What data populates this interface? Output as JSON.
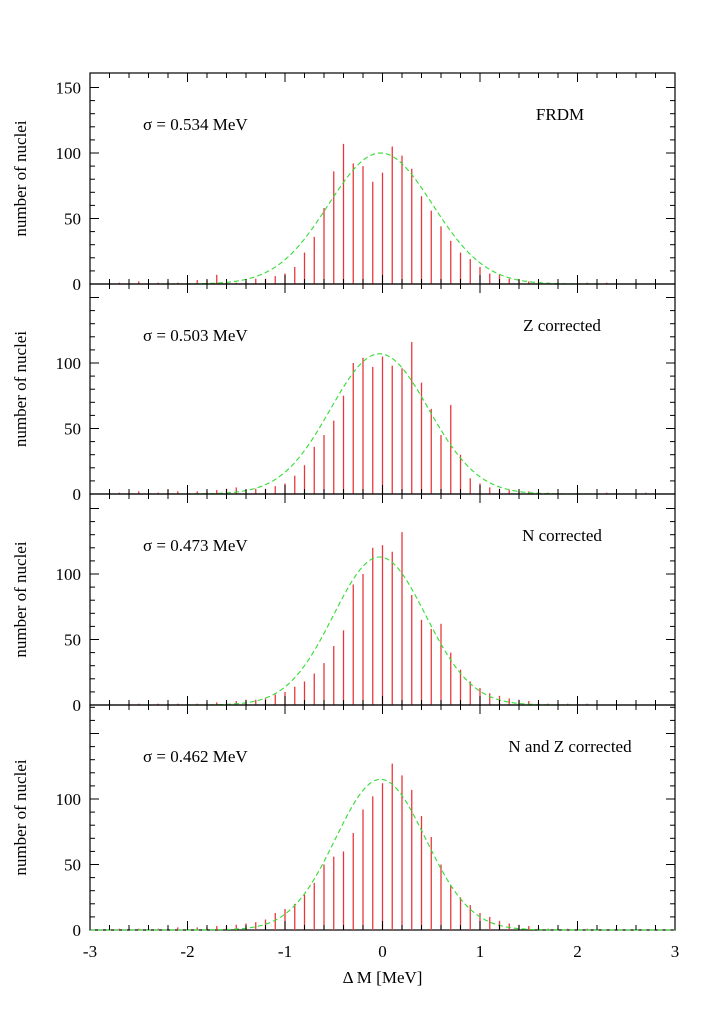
{
  "colors": {
    "bars": "#e8383d",
    "gaussian": "#33dd33",
    "axis": "#000000",
    "background": "#ffffff"
  },
  "xlabel": "Δ M [MeV]",
  "x_tick_labels": [
    "-3",
    "-2",
    "-1",
    "0",
    "1",
    "2",
    "3"
  ],
  "chart_data": [
    {
      "type": "bar",
      "panel_label": "FRDM",
      "sigma_label": "σ = 0.534 MeV",
      "ylabel": "number of nuclei",
      "y_tick_labels": [
        "150",
        "100",
        "50",
        "0"
      ],
      "ylim": [
        0,
        160
      ],
      "xlim": [
        -3,
        3
      ],
      "grid": false,
      "bin_centers": [
        -2.8,
        -2.7,
        -2.6,
        -2.5,
        -2.4,
        -2.3,
        -2.2,
        -2.1,
        -2.0,
        -1.9,
        -1.8,
        -1.7,
        -1.6,
        -1.5,
        -1.4,
        -1.3,
        -1.2,
        -1.1,
        -1.0,
        -0.9,
        -0.8,
        -0.7,
        -0.6,
        -0.5,
        -0.4,
        -0.3,
        -0.2,
        -0.1,
        0.0,
        0.1,
        0.2,
        0.3,
        0.4,
        0.5,
        0.6,
        0.7,
        0.8,
        0.9,
        1.0,
        1.1,
        1.2,
        1.3,
        1.4,
        1.5,
        1.6,
        1.7,
        1.8,
        1.9,
        2.0,
        2.1,
        2.2,
        2.3,
        2.4,
        2.5,
        2.6,
        2.7,
        2.8
      ],
      "counts": [
        1,
        1,
        0,
        2,
        1,
        1,
        2,
        1,
        1,
        3,
        3,
        7,
        1,
        1,
        2,
        4,
        4,
        6,
        8,
        13,
        24,
        36,
        58,
        86,
        107,
        92,
        90,
        78,
        85,
        105,
        98,
        88,
        67,
        56,
        44,
        33,
        24,
        19,
        13,
        8,
        7,
        4,
        3,
        2,
        1,
        1,
        1,
        0,
        0,
        1,
        0,
        1,
        0,
        0,
        1,
        0,
        0
      ],
      "gaussian": {
        "label": "",
        "amplitude": 100,
        "mean": -0.02,
        "sigma": 0.534
      }
    },
    {
      "type": "bar",
      "panel_label": "Z corrected",
      "sigma_label": "σ = 0.503 MeV",
      "ylabel": "number of nuclei",
      "y_tick_labels": [
        "100",
        "50",
        "0"
      ],
      "ylim": [
        0,
        150
      ],
      "xlim": [
        -3,
        3
      ],
      "grid": false,
      "bin_centers": [
        -2.8,
        -2.7,
        -2.6,
        -2.5,
        -2.4,
        -2.3,
        -2.2,
        -2.1,
        -2.0,
        -1.9,
        -1.8,
        -1.7,
        -1.6,
        -1.5,
        -1.4,
        -1.3,
        -1.2,
        -1.1,
        -1.0,
        -0.9,
        -0.8,
        -0.7,
        -0.6,
        -0.5,
        -0.4,
        -0.3,
        -0.2,
        -0.1,
        0.0,
        0.1,
        0.2,
        0.3,
        0.4,
        0.5,
        0.6,
        0.7,
        0.8,
        0.9,
        1.0,
        1.1,
        1.2,
        1.3,
        1.4,
        1.5,
        1.6,
        1.7,
        1.8,
        1.9,
        2.0,
        2.1,
        2.2,
        2.3,
        2.4,
        2.5,
        2.6,
        2.7,
        2.8
      ],
      "counts": [
        1,
        1,
        1,
        2,
        1,
        1,
        3,
        2,
        1,
        2,
        2,
        3,
        4,
        5,
        3,
        4,
        4,
        6,
        8,
        14,
        22,
        36,
        45,
        56,
        75,
        100,
        104,
        97,
        105,
        98,
        96,
        116,
        85,
        65,
        45,
        68,
        30,
        12,
        8,
        5,
        4,
        3,
        2,
        2,
        1,
        1,
        1,
        0,
        1,
        0,
        0,
        1,
        0,
        0,
        0,
        1,
        0
      ],
      "gaussian": {
        "label": "",
        "amplitude": 107,
        "mean": -0.03,
        "sigma": 0.503
      }
    },
    {
      "type": "bar",
      "panel_label": "N corrected",
      "sigma_label": "σ = 0.473 MeV",
      "ylabel": "number of nuclei",
      "y_tick_labels": [
        "100",
        "50",
        "0"
      ],
      "ylim": [
        0,
        150
      ],
      "xlim": [
        -3,
        3
      ],
      "grid": false,
      "bin_centers": [
        -2.8,
        -2.7,
        -2.6,
        -2.5,
        -2.4,
        -2.3,
        -2.2,
        -2.1,
        -2.0,
        -1.9,
        -1.8,
        -1.7,
        -1.6,
        -1.5,
        -1.4,
        -1.3,
        -1.2,
        -1.1,
        -1.0,
        -0.9,
        -0.8,
        -0.7,
        -0.6,
        -0.5,
        -0.4,
        -0.3,
        -0.2,
        -0.1,
        0.0,
        0.1,
        0.2,
        0.3,
        0.4,
        0.5,
        0.6,
        0.7,
        0.8,
        0.9,
        1.0,
        1.1,
        1.2,
        1.3,
        1.4,
        1.5,
        1.6,
        1.7,
        1.8,
        1.9,
        2.0,
        2.1,
        2.2,
        2.3,
        2.4,
        2.5,
        2.6,
        2.7,
        2.8
      ],
      "counts": [
        1,
        0,
        1,
        1,
        0,
        1,
        1,
        1,
        1,
        1,
        2,
        2,
        2,
        3,
        4,
        4,
        5,
        8,
        10,
        14,
        18,
        24,
        32,
        45,
        57,
        92,
        100,
        120,
        122,
        117,
        132,
        84,
        65,
        58,
        62,
        40,
        27,
        18,
        13,
        9,
        7,
        5,
        4,
        3,
        2,
        1,
        1,
        1,
        0,
        1,
        0,
        0,
        1,
        0,
        0,
        0,
        0
      ],
      "gaussian": {
        "label": "",
        "amplitude": 113,
        "mean": -0.03,
        "sigma": 0.473
      }
    },
    {
      "type": "bar",
      "panel_label": "N and Z corrected",
      "sigma_label": "σ = 0.462 MeV",
      "ylabel": "number of nuclei",
      "y_tick_labels": [
        "100",
        "50",
        "0"
      ],
      "ylim": [
        0,
        150
      ],
      "xlim": [
        -3,
        3
      ],
      "grid": false,
      "bin_centers": [
        -2.8,
        -2.7,
        -2.6,
        -2.5,
        -2.4,
        -2.3,
        -2.2,
        -2.1,
        -2.0,
        -1.9,
        -1.8,
        -1.7,
        -1.6,
        -1.5,
        -1.4,
        -1.3,
        -1.2,
        -1.1,
        -1.0,
        -0.9,
        -0.8,
        -0.7,
        -0.6,
        -0.5,
        -0.4,
        -0.3,
        -0.2,
        -0.1,
        0.0,
        0.1,
        0.2,
        0.3,
        0.4,
        0.5,
        0.6,
        0.7,
        0.8,
        0.9,
        1.0,
        1.1,
        1.2,
        1.3,
        1.4,
        1.5,
        1.6,
        1.7,
        1.8,
        1.9,
        2.0,
        2.1,
        2.2,
        2.3,
        2.4,
        2.5,
        2.6,
        2.7,
        2.8
      ],
      "counts": [
        1,
        1,
        0,
        1,
        1,
        1,
        1,
        2,
        1,
        2,
        2,
        3,
        3,
        4,
        5,
        6,
        8,
        13,
        16,
        20,
        27,
        36,
        50,
        56,
        60,
        74,
        92,
        102,
        112,
        127,
        118,
        107,
        87,
        71,
        50,
        34,
        25,
        19,
        13,
        10,
        7,
        5,
        4,
        3,
        2,
        1,
        1,
        1,
        0,
        1,
        0,
        0,
        1,
        0,
        0,
        0,
        1
      ],
      "gaussian": {
        "label": "",
        "amplitude": 115,
        "mean": -0.02,
        "sigma": 0.462
      }
    }
  ]
}
